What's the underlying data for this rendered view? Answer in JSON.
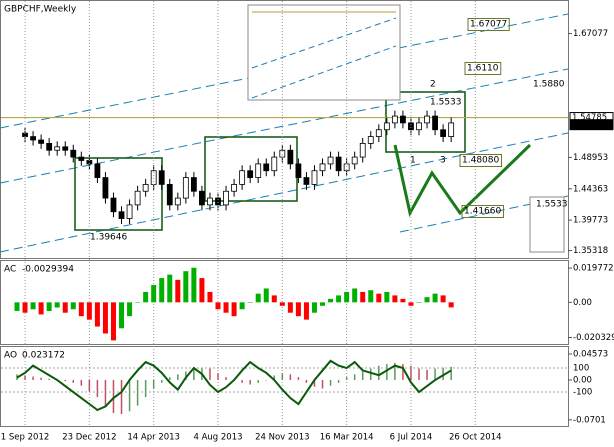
{
  "chart_data": [
    {
      "type": "candlestick",
      "title": "GBPCHF,Weekly",
      "categories": [
        null,
        "1 Sep 2012",
        null,
        null,
        null,
        null,
        null,
        null,
        null,
        "23 Dec 2012",
        null,
        null,
        null,
        null,
        null,
        null,
        null,
        "14 Apr 2013",
        null,
        null,
        null,
        null,
        null,
        null,
        null,
        "4 Aug 2013",
        null,
        null,
        null,
        null,
        null,
        null,
        null,
        "24 Nov 2013",
        null,
        null,
        null,
        null,
        null,
        null,
        null,
        "16 Mar 2014",
        null,
        null,
        null,
        null,
        null,
        null,
        null,
        "6 Jul 2014",
        null,
        null,
        null,
        null,
        null,
        null,
        null,
        "26 Oct 2014"
      ],
      "values": [
        1.525,
        1.52,
        1.515,
        1.51,
        1.5,
        1.505,
        1.5,
        1.49,
        1.485,
        1.48,
        1.46,
        1.43,
        1.41,
        1.4,
        1.42,
        1.44,
        1.45,
        1.47,
        1.45,
        1.42,
        1.43,
        1.46,
        1.44,
        1.42,
        1.43,
        1.42,
        1.44,
        1.45,
        1.47,
        1.46,
        1.48,
        1.47,
        1.49,
        1.5,
        1.48,
        1.46,
        1.45,
        1.47,
        1.48,
        1.49,
        1.47,
        1.48,
        1.49,
        1.51,
        1.52,
        1.53,
        1.54,
        1.55,
        1.54,
        1.53,
        1.54,
        1.55,
        1.53,
        1.52,
        1.54,
        null,
        null,
        null
      ],
      "ylim": [
        1.3423,
        1.7184
      ],
      "yticks": [
        1.67077,
        1.48953,
        1.44363,
        1.39773,
        1.35318
      ],
      "levels": [
        1.54785,
        1.53741
      ],
      "annotations": [
        "1.67077",
        "1.6110",
        "1.5880",
        "1.5533",
        "2",
        "1",
        "3",
        "1.48080",
        "1.41660",
        "1.39646",
        "1.5533"
      ],
      "up_color": "#ffffff",
      "down_color": "#000000"
    },
    {
      "type": "histogram",
      "title": "AC",
      "current": -0.0029394,
      "values": [
        -0.005,
        -0.006,
        -0.004,
        -0.007,
        -0.005,
        -0.003,
        -0.006,
        -0.004,
        -0.008,
        -0.01,
        -0.014,
        -0.018,
        -0.022,
        -0.015,
        -0.008,
        0,
        0.006,
        0.01,
        0.014,
        0.016,
        0.013,
        0.018,
        0.02,
        0.014,
        0.006,
        -0.004,
        -0.006,
        -0.008,
        -0.004,
        0,
        0.005,
        0.008,
        0.004,
        -0.002,
        -0.006,
        -0.008,
        -0.01,
        -0.006,
        -0.002,
        0.002,
        0.004,
        0.006,
        0.008,
        0.006,
        0.007,
        0.005,
        0.006,
        0.004,
        0.002,
        -0.002,
        0,
        0.003,
        0.005,
        0.004,
        -0.0029394
      ],
      "ylim": [
        -0.0235,
        0.0233
      ],
      "yticks": [
        0.019772,
        {
          "value": 0,
          "label": "0.00"
        },
        -0.020329
      ],
      "up_color": "#00b000",
      "down_color": "#ff0000",
      "bar_style": "wide"
    },
    {
      "type": "histogram",
      "title": "AO",
      "current": 0.023172,
      "values": [
        0.01,
        0.008,
        0.006,
        0.004,
        0.002,
        0,
        -0.002,
        -0.005,
        -0.01,
        -0.02,
        -0.03,
        -0.045,
        -0.058,
        -0.06,
        -0.055,
        -0.045,
        -0.03,
        -0.015,
        -0.005,
        0.005,
        0.01,
        0.015,
        0.02,
        0.022,
        0.02,
        0.012,
        0.005,
        0,
        -0.005,
        -0.008,
        -0.005,
        0,
        0.008,
        0.012,
        0.01,
        0.005,
        -0.005,
        -0.012,
        -0.015,
        -0.01,
        -0.005,
        0.005,
        0.01,
        0.015,
        0.02,
        0.025,
        0.028,
        0.03,
        0.028,
        0.025,
        0.02,
        0.018,
        0.02,
        0.022,
        0.023172
      ],
      "ylim": [
        -0.0792,
        0.0563
      ],
      "yticks": [
        0.04573,
        {
          "value": 0,
          "label": "0.00"
        },
        -0.0701
      ],
      "up_color": "#5a9a5a",
      "down_color": "#c05060",
      "bar_style": "thin",
      "series": [
        {
          "axis": "y2",
          "color": "#0a5a0a",
          "values": [
            20,
            60,
            120,
            80,
            40,
            0,
            -50,
            -100,
            -150,
            -200,
            -250,
            -220,
            -150,
            -100,
            0,
            80,
            150,
            120,
            60,
            -20,
            -80,
            20,
            100,
            50,
            -40,
            -100,
            -60,
            0,
            80,
            150,
            100,
            60,
            0,
            -80,
            -150,
            -200,
            -100,
            0,
            80,
            160,
            120,
            100,
            150,
            80,
            60,
            40,
            80,
            120,
            100,
            -20,
            -100,
            -50,
            0,
            40,
            80
          ]
        }
      ],
      "y2lim": [
        -375,
        267
      ],
      "y2ticks": [
        100,
        -100
      ]
    }
  ]
}
